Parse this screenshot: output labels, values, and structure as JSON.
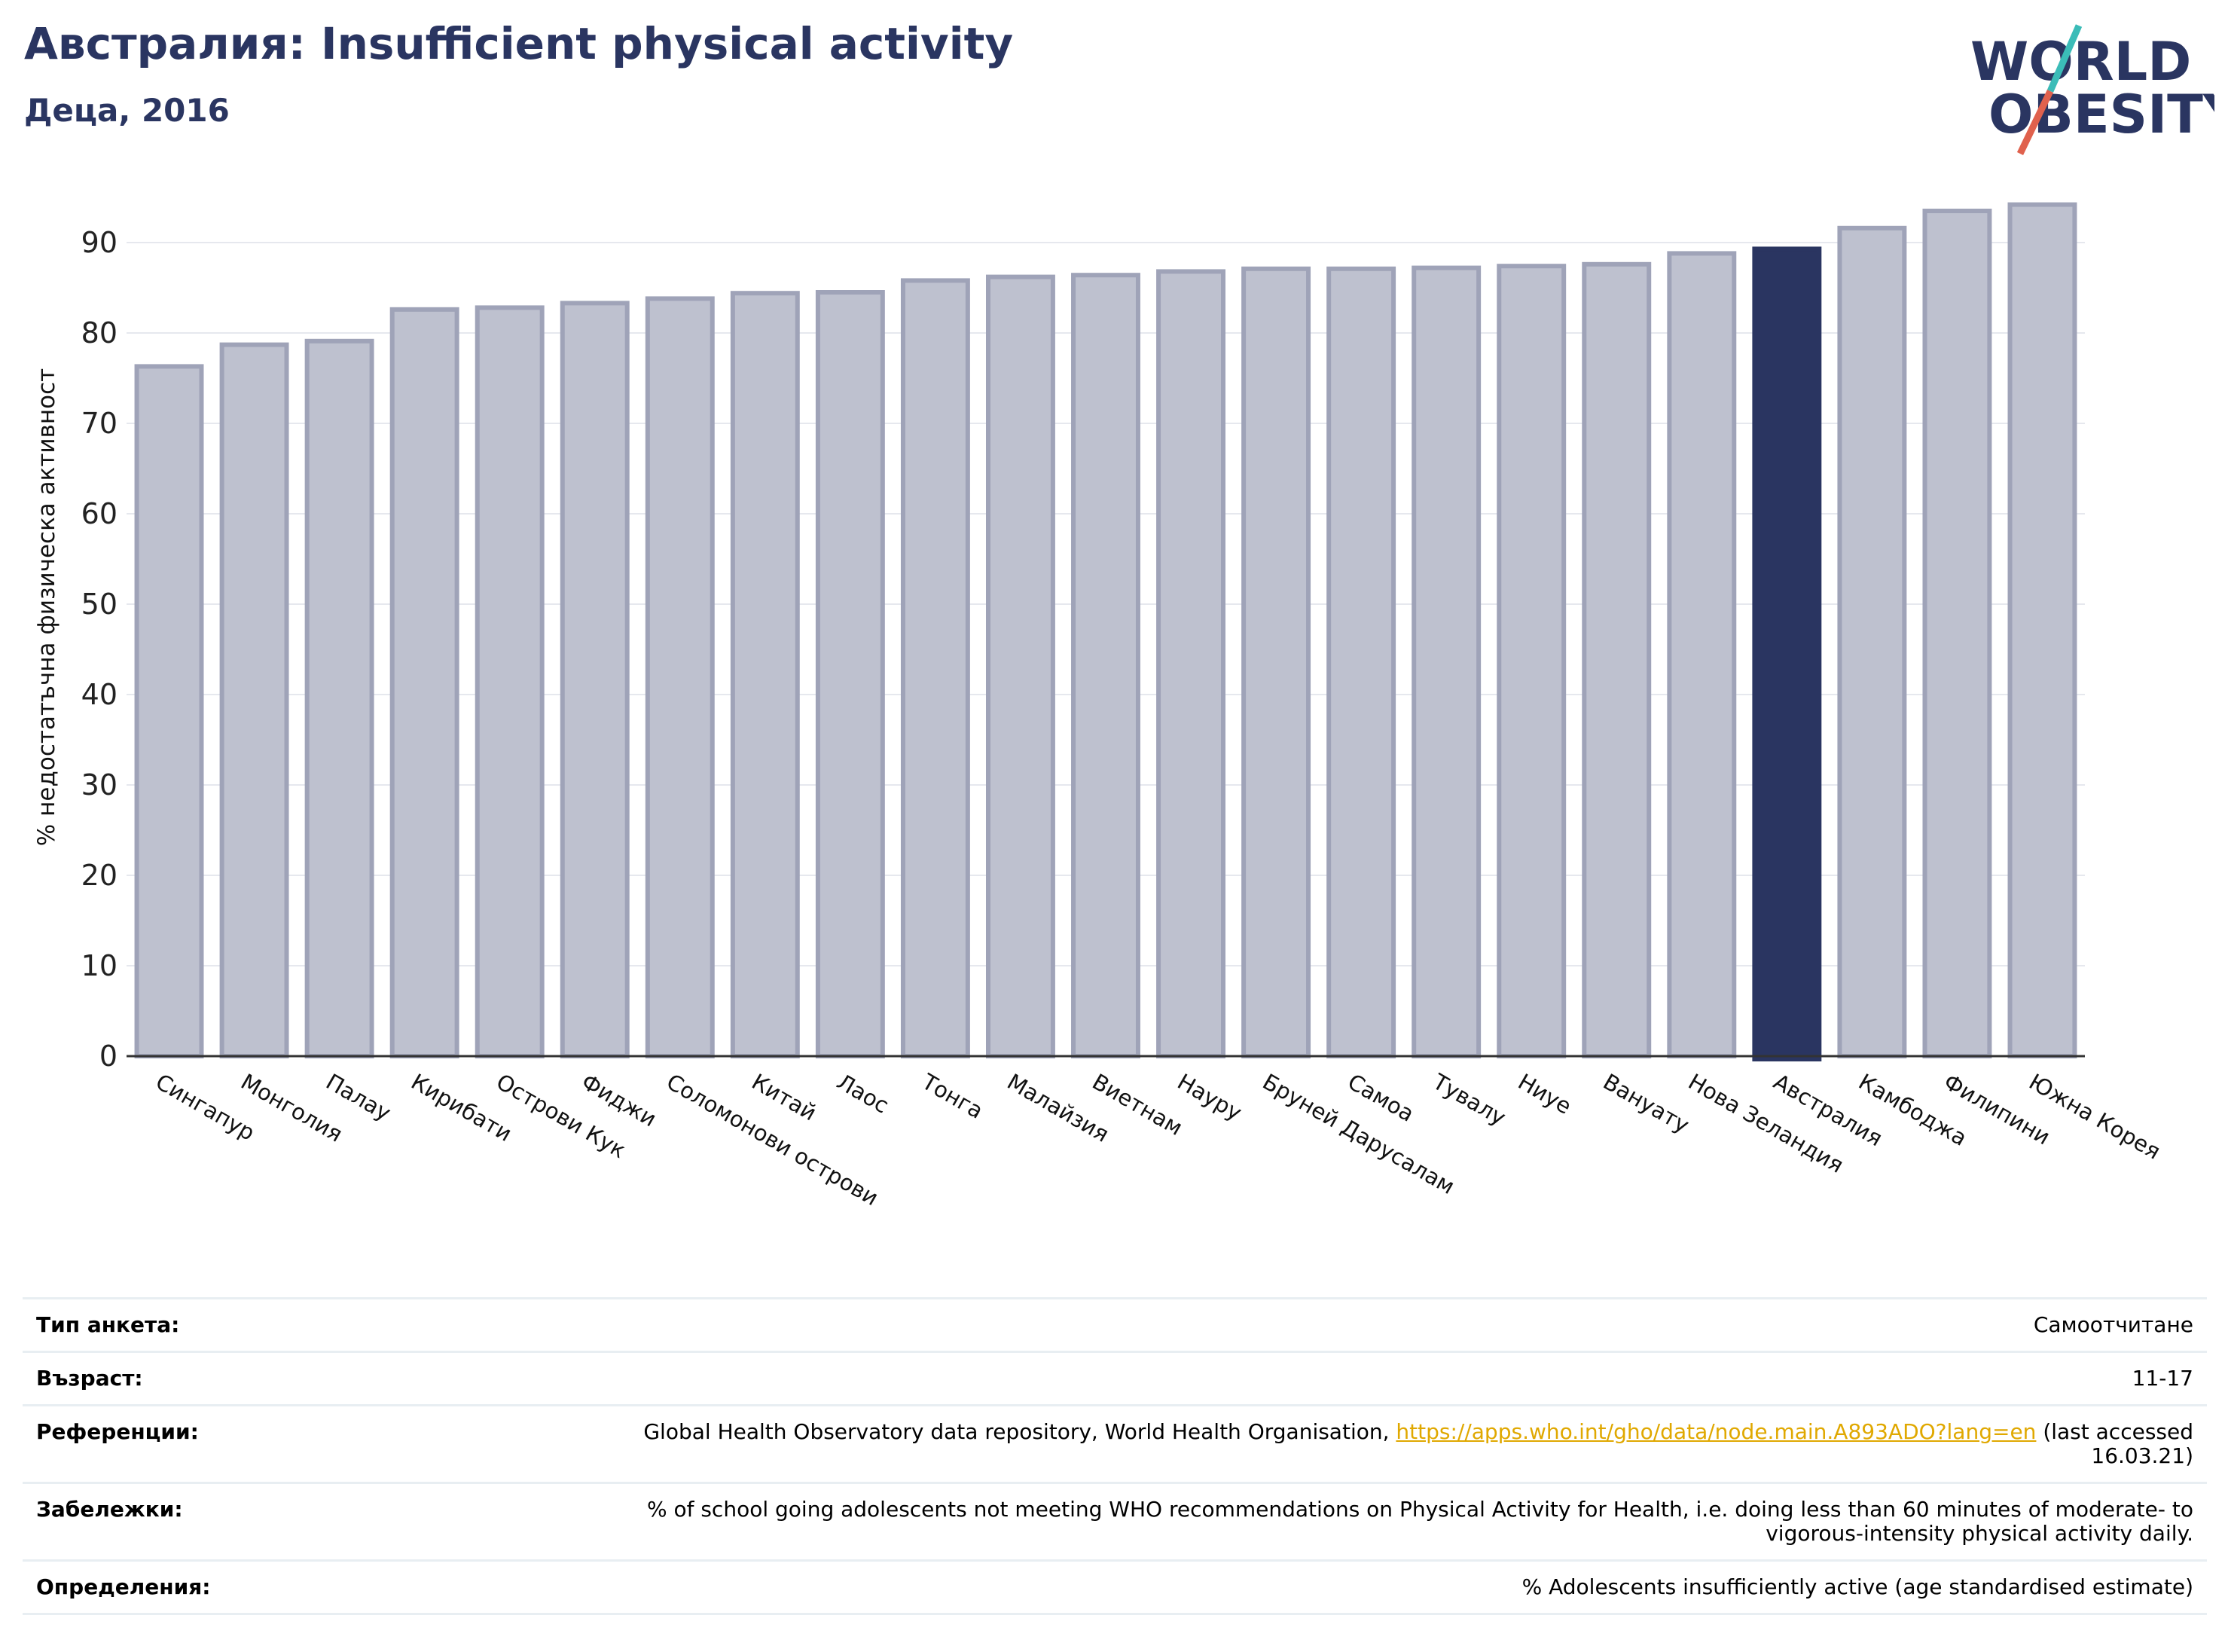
{
  "header": {
    "title": "Австралия: Insufficient physical activity",
    "subtitle": "Деца, 2016"
  },
  "logo": {
    "line1": "WORLD",
    "line2": "OBESITY"
  },
  "chart_data": {
    "type": "bar",
    "ylabel": "% недостатъчна физическа активност",
    "ylim": [
      0,
      96
    ],
    "yticks": [
      0,
      10,
      20,
      30,
      40,
      50,
      60,
      70,
      80,
      90
    ],
    "grid": true,
    "highlight": "Австралия",
    "categories": [
      "Сингапур",
      "Монголия",
      "Палау",
      "Кирибати",
      "Острови Кук",
      "Фиджи",
      "Соломонови острови",
      "Китай",
      "Лаос",
      "Тонга",
      "Малайзия",
      "Виетнам",
      "Науру",
      "Бруней Дарусалам",
      "Самоа",
      "Тувалу",
      "Ниуе",
      "Вануату",
      "Нова Зеландия",
      "Австралия",
      "Камбоджа",
      "Филипини",
      "Южна Корея"
    ],
    "values": [
      76.3,
      78.7,
      79.1,
      82.6,
      82.8,
      83.3,
      83.8,
      84.4,
      84.5,
      85.8,
      86.2,
      86.4,
      86.8,
      87.1,
      87.1,
      87.2,
      87.4,
      87.6,
      88.8,
      89.3,
      91.6,
      93.5,
      94.2
    ],
    "colors": {
      "bar": "#bec1cf",
      "bar_edge": "#9fa3b8",
      "highlight": "#2a3561",
      "axis": "#333333",
      "grid": "#e6e8ee"
    }
  },
  "meta": {
    "rows": [
      {
        "label": "Тип анкета:",
        "value": "Самоотчитане"
      },
      {
        "label": "Възраст:",
        "value": "11-17"
      },
      {
        "label": "Референции:",
        "value_prefix": "Global Health Observatory data repository, World Health Organisation, ",
        "link": "https://apps.who.int/gho/data/node.main.A893ADO?lang=en",
        "value_suffix": " (last accessed 16.03.21)"
      },
      {
        "label": "Забележки:",
        "value": "% of school going adolescents not meeting WHO recommendations on Physical Activity for Health, i.e. doing less than 60 minutes of moderate- to vigorous-intensity physical activity daily."
      },
      {
        "label": "Определения:",
        "value": "% Adolescents insufficiently active (age standardised estimate)"
      }
    ]
  }
}
